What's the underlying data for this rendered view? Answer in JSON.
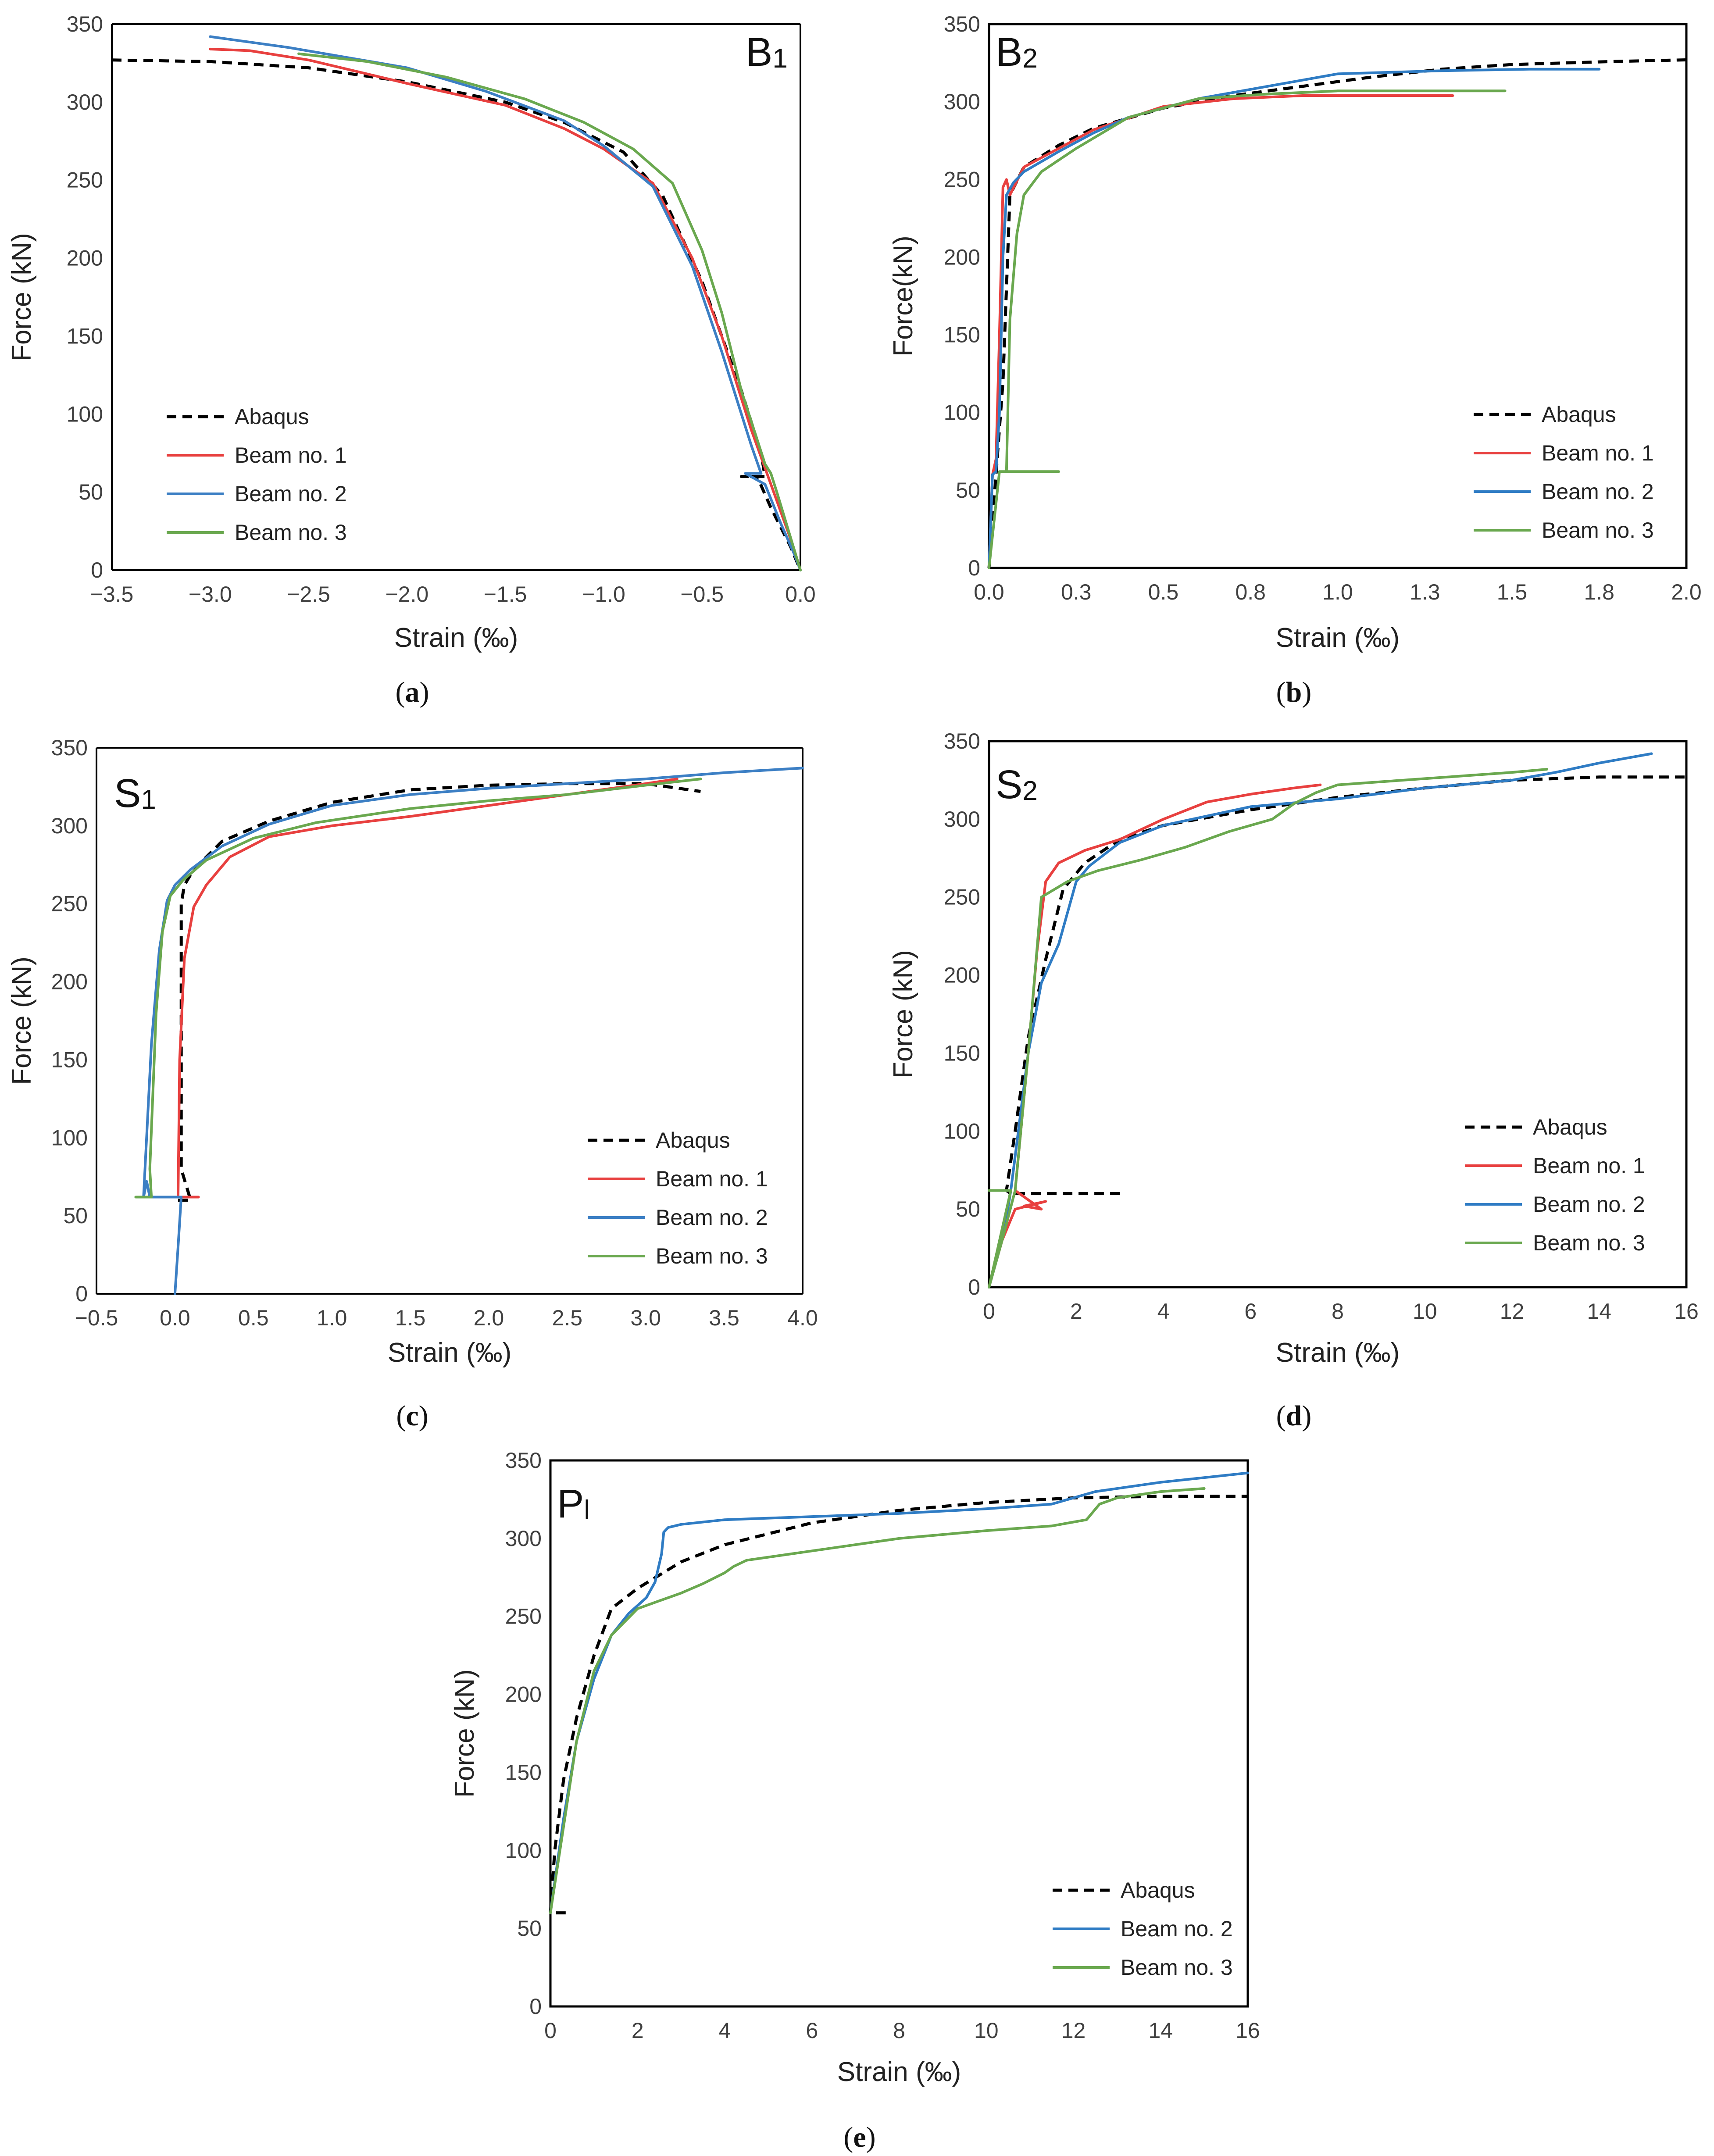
{
  "chart_data": [
    {
      "type": "line",
      "panel_title": "B1",
      "caption_letter": "a",
      "xlabel": "Strain (‰)",
      "ylabel": "Force (kN)",
      "xlim": [
        -3.5,
        0.0
      ],
      "ylim": [
        0,
        350
      ],
      "xticks": [
        -3.5,
        -3.0,
        -2.5,
        -2.0,
        -1.5,
        -1.0,
        -0.5,
        0.0
      ],
      "xtick_labels": [
        "−3.5",
        "−3.0",
        "−2.5",
        "−2.0",
        "−1.5",
        "−1.0",
        "−0.5",
        "0.0"
      ],
      "yticks": [
        0,
        50,
        100,
        150,
        200,
        250,
        300,
        350
      ],
      "legend_position": "bottom-left",
      "series": [
        {
          "name": "Abaqus",
          "color": "#000000",
          "dashed": true,
          "x": [
            -3.5,
            -3.0,
            -2.5,
            -2.0,
            -1.5,
            -1.2,
            -0.9,
            -0.7,
            -0.5,
            -0.3,
            -0.2,
            -0.18,
            -0.3,
            -0.22,
            -0.15,
            -0.05,
            0.0
          ],
          "y": [
            327,
            326,
            322,
            313,
            300,
            287,
            268,
            240,
            185,
            115,
            75,
            60,
            60,
            60,
            40,
            15,
            0
          ]
        },
        {
          "name": "Beam no. 1",
          "color": "#e8403f",
          "dashed": false,
          "x": [
            -3.0,
            -2.8,
            -2.5,
            -2.0,
            -1.5,
            -1.2,
            -1.0,
            -0.75,
            -0.55,
            -0.4,
            -0.25,
            -0.15,
            -0.05,
            0.0
          ],
          "y": [
            334,
            333,
            327,
            312,
            298,
            283,
            270,
            248,
            200,
            150,
            90,
            55,
            20,
            0
          ]
        },
        {
          "name": "Beam no. 2",
          "color": "#3c7fc4",
          "dashed": false,
          "x": [
            -3.0,
            -2.6,
            -2.0,
            -1.6,
            -1.2,
            -1.0,
            -0.75,
            -0.55,
            -0.4,
            -0.25,
            -0.2,
            -0.28,
            -0.18,
            -0.1,
            -0.03,
            0.0
          ],
          "y": [
            342,
            335,
            322,
            307,
            288,
            272,
            246,
            195,
            140,
            80,
            62,
            62,
            55,
            30,
            10,
            0
          ]
        },
        {
          "name": "Beam no. 3",
          "color": "#6aa84f",
          "dashed": false,
          "x": [
            -2.55,
            -2.2,
            -1.8,
            -1.4,
            -1.1,
            -0.85,
            -0.65,
            -0.5,
            -0.4,
            -0.3,
            -0.18,
            -0.15,
            -0.12,
            -0.06,
            0.0
          ],
          "y": [
            331,
            326,
            316,
            302,
            287,
            270,
            248,
            205,
            165,
            115,
            68,
            62,
            50,
            25,
            0
          ]
        }
      ]
    },
    {
      "type": "line",
      "panel_title": "B2",
      "caption_letter": "b",
      "xlabel": "Strain (‰)",
      "ylabel": "Force(kN)",
      "xlim": [
        0.0,
        2.0
      ],
      "ylim": [
        0,
        350
      ],
      "xticks": [
        0.0,
        0.25,
        0.5,
        0.75,
        1.0,
        1.25,
        1.5,
        1.75,
        2.0
      ],
      "xtick_labels": [
        "0.0",
        "0.3",
        "0.5",
        "0.8",
        "1.0",
        "1.3",
        "1.5",
        "1.8",
        "2.0"
      ],
      "yticks": [
        0,
        50,
        100,
        150,
        200,
        250,
        300,
        350
      ],
      "legend_position": "bottom-right",
      "series": [
        {
          "name": "Abaqus",
          "color": "#000000",
          "dashed": true,
          "x": [
            0.0,
            0.02,
            0.04,
            0.06,
            0.1,
            0.2,
            0.3,
            0.5,
            0.7,
            0.9,
            1.1,
            1.3,
            1.5,
            1.8,
            2.0
          ],
          "y": [
            0,
            60,
            120,
            240,
            258,
            272,
            283,
            296,
            304,
            310,
            316,
            321,
            324,
            326,
            327
          ]
        },
        {
          "name": "Beam no. 1",
          "color": "#e8403f",
          "dashed": false,
          "x": [
            0.0,
            0.01,
            0.02,
            0.03,
            0.04,
            0.05,
            0.06,
            0.1,
            0.2,
            0.3,
            0.5,
            0.7,
            0.9,
            1.1,
            1.33
          ],
          "y": [
            0,
            60,
            70,
            150,
            245,
            250,
            240,
            258,
            270,
            282,
            297,
            302,
            304,
            304,
            304
          ]
        },
        {
          "name": "Beam no. 2",
          "color": "#2f7cc4",
          "dashed": false,
          "x": [
            0.0,
            0.01,
            0.02,
            0.03,
            0.04,
            0.05,
            0.07,
            0.1,
            0.2,
            0.3,
            0.4,
            0.6,
            0.8,
            1.0,
            1.3,
            1.55,
            1.75
          ],
          "y": [
            0,
            60,
            62,
            100,
            200,
            240,
            248,
            255,
            268,
            280,
            290,
            302,
            310,
            318,
            320,
            321,
            321
          ]
        },
        {
          "name": "Beam no. 3",
          "color": "#6aa84f",
          "dashed": false,
          "x": [
            0.0,
            0.03,
            0.05,
            0.2,
            0.05,
            0.06,
            0.08,
            0.1,
            0.15,
            0.25,
            0.4,
            0.6,
            0.8,
            1.0,
            1.2,
            1.48
          ],
          "y": [
            0,
            62,
            62,
            62,
            62,
            160,
            215,
            240,
            255,
            270,
            290,
            302,
            305,
            307,
            307,
            307
          ]
        }
      ]
    },
    {
      "type": "line",
      "panel_title": "S1",
      "caption_letter": "c",
      "xlabel": "Strain (‰)",
      "ylabel": "Force (kN)",
      "xlim": [
        -0.5,
        4.0
      ],
      "ylim": [
        0,
        350
      ],
      "xticks": [
        -0.5,
        0.0,
        0.5,
        1.0,
        1.5,
        2.0,
        2.5,
        3.0,
        3.5,
        4.0
      ],
      "xtick_labels": [
        "−0.5",
        "0.0",
        "0.5",
        "1.0",
        "1.5",
        "2.0",
        "2.5",
        "3.0",
        "3.5",
        "4.0"
      ],
      "yticks": [
        0,
        50,
        100,
        150,
        200,
        250,
        300,
        350
      ],
      "legend_position": "bottom-right",
      "series": [
        {
          "name": "Abaqus",
          "color": "#000000",
          "dashed": true,
          "x": [
            0.02,
            0.06,
            0.1,
            0.04,
            0.04,
            0.06,
            0.12,
            0.3,
            0.6,
            1.0,
            1.5,
            2.0,
            2.5,
            3.0,
            3.35
          ],
          "y": [
            60,
            60,
            60,
            80,
            250,
            262,
            272,
            290,
            303,
            315,
            323,
            326,
            327,
            327,
            322
          ]
        },
        {
          "name": "Beam no. 1",
          "color": "#e8403f",
          "dashed": false,
          "x": [
            0.02,
            0.15,
            0.02,
            0.03,
            0.06,
            0.12,
            0.2,
            0.35,
            0.6,
            1.0,
            1.5,
            2.0,
            2.5,
            3.0,
            3.2
          ],
          "y": [
            62,
            62,
            62,
            150,
            215,
            248,
            262,
            280,
            293,
            300,
            306,
            313,
            320,
            327,
            330
          ]
        },
        {
          "name": "Beam no. 2",
          "color": "#3c7fc4",
          "dashed": false,
          "x": [
            0.0,
            0.02,
            0.04,
            -0.16,
            -0.18,
            -0.2,
            -0.15,
            -0.1,
            -0.05,
            0.0,
            0.1,
            0.3,
            0.6,
            1.0,
            1.5,
            2.0,
            2.5,
            3.0,
            3.5,
            4.0
          ],
          "y": [
            0,
            30,
            62,
            62,
            72,
            62,
            160,
            220,
            252,
            262,
            272,
            287,
            301,
            313,
            320,
            324,
            327,
            330,
            334,
            337
          ]
        },
        {
          "name": "Beam no. 3",
          "color": "#6aa84f",
          "dashed": false,
          "x": [
            -0.25,
            -0.15,
            -0.16,
            -0.12,
            -0.08,
            -0.03,
            0.05,
            0.2,
            0.5,
            0.9,
            1.5,
            2.0,
            2.5,
            3.0,
            3.35
          ],
          "y": [
            62,
            62,
            80,
            180,
            232,
            255,
            265,
            278,
            292,
            302,
            311,
            316,
            320,
            326,
            330
          ]
        }
      ]
    },
    {
      "type": "line",
      "panel_title": "S2",
      "caption_letter": "d",
      "xlabel": "Strain (‰)",
      "ylabel": "Force (kN)",
      "xlim": [
        0,
        16
      ],
      "ylim": [
        0,
        350
      ],
      "xticks": [
        0,
        2,
        4,
        6,
        8,
        10,
        12,
        14,
        16
      ],
      "xtick_labels": [
        "0",
        "2",
        "4",
        "6",
        "8",
        "10",
        "12",
        "14",
        "16"
      ],
      "yticks": [
        0,
        50,
        100,
        150,
        200,
        250,
        300,
        350
      ],
      "legend_position": "bottom-right",
      "series": [
        {
          "name": "Abaqus",
          "color": "#000000",
          "dashed": true,
          "x": [
            3.0,
            1.5,
            0.5,
            0.4,
            0.6,
            0.9,
            1.3,
            1.7,
            2.2,
            3.0,
            4.0,
            6.0,
            8.0,
            10.0,
            12.0,
            14.0,
            16.0
          ],
          "y": [
            60,
            60,
            60,
            62,
            100,
            160,
            210,
            255,
            272,
            287,
            296,
            306,
            314,
            320,
            325,
            327,
            327
          ]
        },
        {
          "name": "Beam no. 1",
          "color": "#e8403f",
          "dashed": false,
          "x": [
            0.0,
            0.3,
            0.6,
            1.3,
            0.8,
            1.2,
            0.6,
            0.9,
            1.1,
            1.3,
            1.6,
            2.2,
            3.0,
            4.0,
            5.0,
            6.0,
            7.0,
            7.6
          ],
          "y": [
            0,
            30,
            50,
            55,
            52,
            50,
            62,
            150,
            215,
            260,
            272,
            280,
            287,
            300,
            311,
            316,
            320,
            322
          ]
        },
        {
          "name": "Beam no. 2",
          "color": "#2f7cc4",
          "dashed": false,
          "x": [
            0.0,
            0.2,
            0.4,
            0.5,
            0.9,
            1.2,
            1.6,
            2.0,
            2.3,
            3.0,
            4.0,
            6.0,
            8.0,
            10.0,
            12.0,
            13.0,
            14.0,
            15.2
          ],
          "y": [
            0,
            20,
            45,
            62,
            150,
            195,
            220,
            260,
            270,
            285,
            296,
            308,
            313,
            320,
            325,
            330,
            336,
            342
          ]
        },
        {
          "name": "Beam no. 3",
          "color": "#6aa84f",
          "dashed": false,
          "x": [
            0.0,
            0.5,
            0.0,
            0.3,
            0.6,
            0.9,
            1.2,
            1.8,
            2.5,
            3.5,
            4.5,
            5.5,
            6.5,
            7.0,
            7.5,
            8.0,
            9.0,
            10.0,
            11.0,
            12.0,
            12.8
          ],
          "y": [
            62,
            62,
            0,
            30,
            62,
            150,
            250,
            260,
            267,
            274,
            282,
            292,
            300,
            310,
            317,
            322,
            324,
            326,
            328,
            330,
            332
          ]
        }
      ]
    },
    {
      "type": "line",
      "panel_title": "Pl",
      "caption_letter": "e",
      "xlabel": "Strain (‰)",
      "ylabel": "Force (kN)",
      "xlim": [
        0,
        16
      ],
      "ylim": [
        0,
        350
      ],
      "xticks": [
        0,
        2,
        4,
        6,
        8,
        10,
        12,
        14,
        16
      ],
      "xtick_labels": [
        "0",
        "2",
        "4",
        "6",
        "8",
        "10",
        "12",
        "14",
        "16"
      ],
      "yticks": [
        0,
        50,
        100,
        150,
        200,
        250,
        300,
        350
      ],
      "legend_position": "bottom-right",
      "series": [
        {
          "name": "Abaqus",
          "color": "#000000",
          "dashed": true,
          "x": [
            0.35,
            0.0,
            0.1,
            0.3,
            0.6,
            1.0,
            1.4,
            2.0,
            3.0,
            4.0,
            6.0,
            8.0,
            10.0,
            12.0,
            14.0,
            16.0
          ],
          "y": [
            60,
            60,
            100,
            145,
            185,
            225,
            255,
            268,
            285,
            296,
            310,
            318,
            323,
            326,
            327,
            327
          ]
        },
        {
          "name": "Beam no. 2",
          "color": "#2f7cc4",
          "dashed": false,
          "x": [
            0.0,
            0.3,
            0.6,
            1.0,
            1.4,
            1.8,
            2.2,
            2.4,
            2.55,
            2.6,
            2.7,
            3.0,
            4.0,
            6.0,
            8.0,
            10.0,
            11.5,
            12.5,
            14.0,
            16.0
          ],
          "y": [
            60,
            120,
            170,
            210,
            238,
            252,
            262,
            272,
            290,
            304,
            307,
            309,
            312,
            314,
            316,
            319,
            322,
            330,
            336,
            342
          ]
        },
        {
          "name": "Beam no. 3",
          "color": "#6aa84f",
          "dashed": false,
          "x": [
            0.0,
            0.3,
            0.6,
            1.0,
            1.4,
            2.0,
            2.5,
            3.0,
            3.5,
            4.0,
            4.2,
            4.5,
            6.0,
            8.0,
            10.0,
            11.5,
            12.3,
            12.6,
            13.0,
            14.0,
            15.0
          ],
          "y": [
            60,
            115,
            170,
            215,
            238,
            255,
            260,
            265,
            271,
            278,
            282,
            286,
            292,
            300,
            305,
            308,
            312,
            322,
            326,
            330,
            332
          ]
        }
      ]
    }
  ]
}
